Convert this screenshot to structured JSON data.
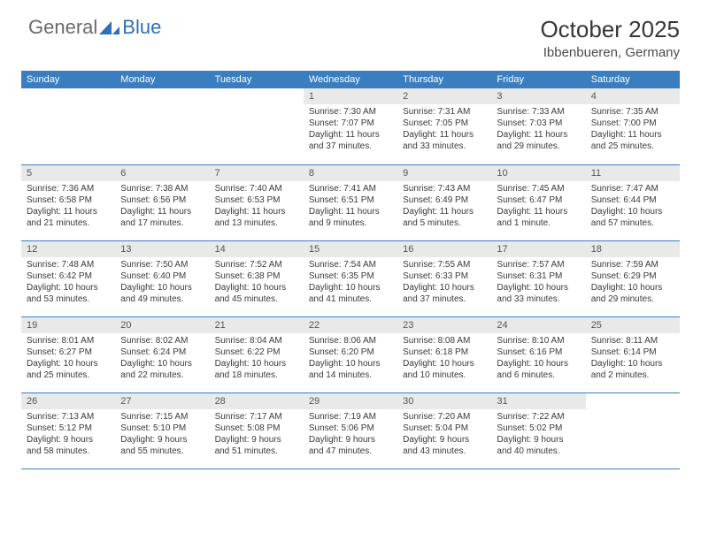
{
  "logo": {
    "general": "General",
    "blue": "Blue"
  },
  "title": "October 2025",
  "location": "Ibbenbueren, Germany",
  "colors": {
    "header_bg": "#3a7ec0",
    "header_text": "#ffffff",
    "daybar_bg": "#e9e9e9",
    "border": "#3a7ec0",
    "logo_gray": "#6a6a6a",
    "logo_blue": "#2f6fb3"
  },
  "dayHeaders": [
    "Sunday",
    "Monday",
    "Tuesday",
    "Wednesday",
    "Thursday",
    "Friday",
    "Saturday"
  ],
  "weeks": [
    [
      {
        "n": "",
        "sr": "",
        "ss": "",
        "dl": ""
      },
      {
        "n": "",
        "sr": "",
        "ss": "",
        "dl": ""
      },
      {
        "n": "",
        "sr": "",
        "ss": "",
        "dl": ""
      },
      {
        "n": "1",
        "sr": "7:30 AM",
        "ss": "7:07 PM",
        "dl": "11 hours and 37 minutes."
      },
      {
        "n": "2",
        "sr": "7:31 AM",
        "ss": "7:05 PM",
        "dl": "11 hours and 33 minutes."
      },
      {
        "n": "3",
        "sr": "7:33 AM",
        "ss": "7:03 PM",
        "dl": "11 hours and 29 minutes."
      },
      {
        "n": "4",
        "sr": "7:35 AM",
        "ss": "7:00 PM",
        "dl": "11 hours and 25 minutes."
      }
    ],
    [
      {
        "n": "5",
        "sr": "7:36 AM",
        "ss": "6:58 PM",
        "dl": "11 hours and 21 minutes."
      },
      {
        "n": "6",
        "sr": "7:38 AM",
        "ss": "6:56 PM",
        "dl": "11 hours and 17 minutes."
      },
      {
        "n": "7",
        "sr": "7:40 AM",
        "ss": "6:53 PM",
        "dl": "11 hours and 13 minutes."
      },
      {
        "n": "8",
        "sr": "7:41 AM",
        "ss": "6:51 PM",
        "dl": "11 hours and 9 minutes."
      },
      {
        "n": "9",
        "sr": "7:43 AM",
        "ss": "6:49 PM",
        "dl": "11 hours and 5 minutes."
      },
      {
        "n": "10",
        "sr": "7:45 AM",
        "ss": "6:47 PM",
        "dl": "11 hours and 1 minute."
      },
      {
        "n": "11",
        "sr": "7:47 AM",
        "ss": "6:44 PM",
        "dl": "10 hours and 57 minutes."
      }
    ],
    [
      {
        "n": "12",
        "sr": "7:48 AM",
        "ss": "6:42 PM",
        "dl": "10 hours and 53 minutes."
      },
      {
        "n": "13",
        "sr": "7:50 AM",
        "ss": "6:40 PM",
        "dl": "10 hours and 49 minutes."
      },
      {
        "n": "14",
        "sr": "7:52 AM",
        "ss": "6:38 PM",
        "dl": "10 hours and 45 minutes."
      },
      {
        "n": "15",
        "sr": "7:54 AM",
        "ss": "6:35 PM",
        "dl": "10 hours and 41 minutes."
      },
      {
        "n": "16",
        "sr": "7:55 AM",
        "ss": "6:33 PM",
        "dl": "10 hours and 37 minutes."
      },
      {
        "n": "17",
        "sr": "7:57 AM",
        "ss": "6:31 PM",
        "dl": "10 hours and 33 minutes."
      },
      {
        "n": "18",
        "sr": "7:59 AM",
        "ss": "6:29 PM",
        "dl": "10 hours and 29 minutes."
      }
    ],
    [
      {
        "n": "19",
        "sr": "8:01 AM",
        "ss": "6:27 PM",
        "dl": "10 hours and 25 minutes."
      },
      {
        "n": "20",
        "sr": "8:02 AM",
        "ss": "6:24 PM",
        "dl": "10 hours and 22 minutes."
      },
      {
        "n": "21",
        "sr": "8:04 AM",
        "ss": "6:22 PM",
        "dl": "10 hours and 18 minutes."
      },
      {
        "n": "22",
        "sr": "8:06 AM",
        "ss": "6:20 PM",
        "dl": "10 hours and 14 minutes."
      },
      {
        "n": "23",
        "sr": "8:08 AM",
        "ss": "6:18 PM",
        "dl": "10 hours and 10 minutes."
      },
      {
        "n": "24",
        "sr": "8:10 AM",
        "ss": "6:16 PM",
        "dl": "10 hours and 6 minutes."
      },
      {
        "n": "25",
        "sr": "8:11 AM",
        "ss": "6:14 PM",
        "dl": "10 hours and 2 minutes."
      }
    ],
    [
      {
        "n": "26",
        "sr": "7:13 AM",
        "ss": "5:12 PM",
        "dl": "9 hours and 58 minutes."
      },
      {
        "n": "27",
        "sr": "7:15 AM",
        "ss": "5:10 PM",
        "dl": "9 hours and 55 minutes."
      },
      {
        "n": "28",
        "sr": "7:17 AM",
        "ss": "5:08 PM",
        "dl": "9 hours and 51 minutes."
      },
      {
        "n": "29",
        "sr": "7:19 AM",
        "ss": "5:06 PM",
        "dl": "9 hours and 47 minutes."
      },
      {
        "n": "30",
        "sr": "7:20 AM",
        "ss": "5:04 PM",
        "dl": "9 hours and 43 minutes."
      },
      {
        "n": "31",
        "sr": "7:22 AM",
        "ss": "5:02 PM",
        "dl": "9 hours and 40 minutes."
      },
      {
        "n": "",
        "sr": "",
        "ss": "",
        "dl": ""
      }
    ]
  ],
  "labels": {
    "sunrise": "Sunrise:",
    "sunset": "Sunset:",
    "daylight": "Daylight:"
  }
}
